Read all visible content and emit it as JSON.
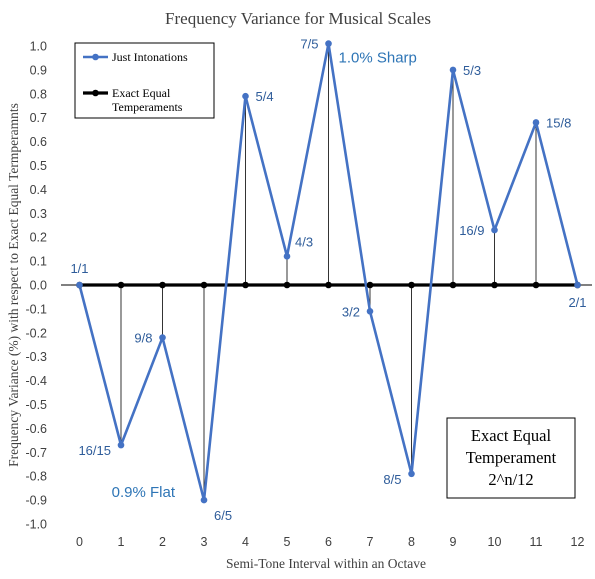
{
  "chart_data": {
    "type": "line",
    "title": "Frequency Variance for Musical Scales",
    "xlabel": "Semi-Tone Interval within an Octave",
    "ylabel": "Frequency Variance (%) with respect to Exact Equal Termperamnts",
    "x": [
      0,
      1,
      2,
      3,
      4,
      5,
      6,
      7,
      8,
      9,
      10,
      11,
      12
    ],
    "xlim": [
      -0.5,
      12.5
    ],
    "ylim": [
      -1.0,
      1.0
    ],
    "yticks": [
      1.0,
      0.9,
      0.8,
      0.7,
      0.6,
      0.5,
      0.4,
      0.3,
      0.2,
      0.1,
      0.0,
      -0.1,
      -0.2,
      -0.3,
      -0.4,
      -0.5,
      -0.6,
      -0.7,
      -0.8,
      -0.9,
      -1.0
    ],
    "ytick_labels": [
      "1.0",
      "0.9",
      "0.8",
      "0.7",
      "0.6",
      "0.5",
      "0.4",
      "0.3",
      "0.2",
      "0.1",
      "0.0",
      "-0.1",
      "-0.2",
      "-0.3",
      "-0.4",
      "-0.5",
      "-0.6",
      "-0.7",
      "-0.8",
      "-0.9",
      "-1.0"
    ],
    "grid": false,
    "legend": "top-left",
    "series": [
      {
        "name": "Just Intonations",
        "color": "#4472C4",
        "values": [
          0.0,
          -0.67,
          -0.22,
          -0.9,
          0.79,
          0.12,
          1.01,
          -0.11,
          -0.79,
          0.9,
          0.23,
          0.68,
          0.0
        ]
      },
      {
        "name": "Exact Equal Temperaments",
        "color": "#000000",
        "values": [
          0,
          0,
          0,
          0,
          0,
          0,
          0,
          0,
          0,
          0,
          0,
          0,
          0
        ]
      }
    ],
    "legend_lines": [
      [
        "Just Intonations"
      ],
      [
        "Exact Equal",
        "Temperaments"
      ]
    ],
    "point_labels": [
      {
        "x": 0,
        "text": "1/1",
        "pos": "above"
      },
      {
        "x": 1,
        "text": "16/15",
        "pos": "below-left"
      },
      {
        "x": 2,
        "text": "9/8",
        "pos": "left"
      },
      {
        "x": 3,
        "text": "6/5",
        "pos": "below-right"
      },
      {
        "x": 4,
        "text": "5/4",
        "pos": "right"
      },
      {
        "x": 5,
        "text": "4/3",
        "pos": "above-right"
      },
      {
        "x": 6,
        "text": "7/5",
        "pos": "left"
      },
      {
        "x": 7,
        "text": "3/2",
        "pos": "left"
      },
      {
        "x": 8,
        "text": "8/5",
        "pos": "below-left"
      },
      {
        "x": 9,
        "text": "5/3",
        "pos": "right"
      },
      {
        "x": 10,
        "text": "16/9",
        "pos": "left"
      },
      {
        "x": 11,
        "text": "15/8",
        "pos": "right"
      },
      {
        "x": 12,
        "text": "2/1",
        "pos": "below"
      }
    ],
    "annotations": [
      {
        "text": "1.0% Sharp",
        "x": 6,
        "y": 1.01
      },
      {
        "text": "0.9% Flat",
        "x": 3,
        "y": -0.9
      }
    ],
    "textbox": [
      "Exact Equal",
      "Temperament",
      "2^n/12"
    ]
  }
}
